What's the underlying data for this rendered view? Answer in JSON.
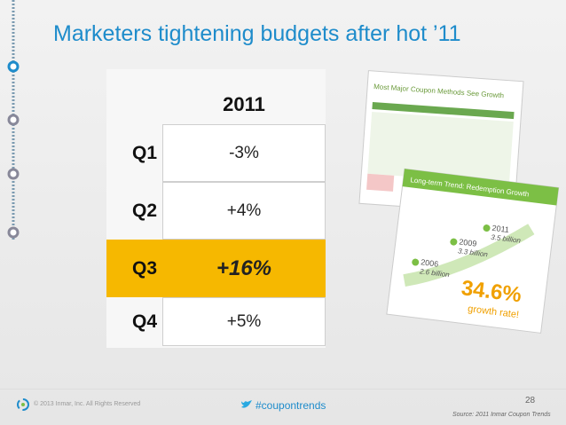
{
  "header": {
    "title": "Marketers tightening budgets after hot ’11"
  },
  "table": {
    "columns": [
      "2011"
    ],
    "rows": [
      [
        "Q1",
        "-3%"
      ],
      [
        "Q2",
        "+4%"
      ],
      [
        "Q3",
        "+16%"
      ],
      [
        "Q4",
        "+5%"
      ]
    ],
    "highlight_row": 2
  },
  "thumbnails": [
    {
      "title": "Most Major Coupon Methods See Growth"
    },
    {
      "title": "Long-term Trend: Redemption Growth",
      "points": [
        {
          "year": "2006",
          "label": "2.6 billion"
        },
        {
          "year": "2009",
          "label": "3.3 billion"
        },
        {
          "year": "2011",
          "label": "3.5 billion"
        }
      ],
      "callout": "34.6%",
      "callout_sub": "growth rate!"
    }
  ],
  "footer": {
    "copyright": "© 2013 Inmar, Inc. All Rights Reserved",
    "hashtag": "#coupontrends",
    "page": "28",
    "source": "Source: 2011 Inmar Coupon Trends"
  }
}
